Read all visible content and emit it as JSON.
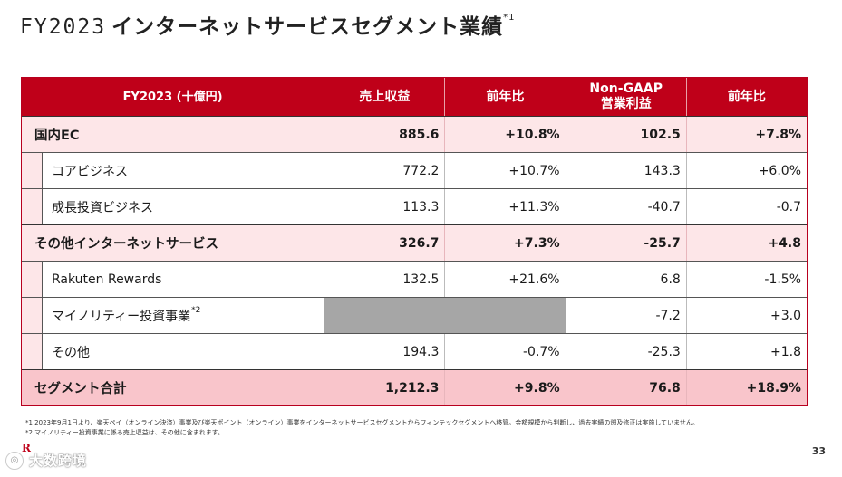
{
  "title": {
    "fy": "FY2023",
    "main": "インターネットサービスセグメント業績",
    "note_mark": "*1"
  },
  "table": {
    "headers": {
      "label": "FY2023 (十億円)",
      "revenue": "売上収益",
      "revenue_yoy": "前年比",
      "op_line1": "Non-GAAP",
      "op_line2": "営業利益",
      "op_yoy": "前年比"
    },
    "rows": [
      {
        "label": "国内EC",
        "revenue": "885.6",
        "revenue_yoy": "+10.8%",
        "op": "102.5",
        "op_yoy": "+7.8%"
      },
      {
        "label": "コアビジネス",
        "revenue": "772.2",
        "revenue_yoy": "+10.7%",
        "op": "143.3",
        "op_yoy": "+6.0%"
      },
      {
        "label": "成長投資ビジネス",
        "revenue": "113.3",
        "revenue_yoy": "+11.3%",
        "op": "-40.7",
        "op_yoy": "-0.7"
      },
      {
        "label": "その他インターネットサービス",
        "revenue": "326.7",
        "revenue_yoy": "+7.3%",
        "op": "-25.7",
        "op_yoy": "+4.8"
      },
      {
        "label": "Rakuten Rewards",
        "revenue": "132.5",
        "revenue_yoy": "+21.6%",
        "op": "6.8",
        "op_yoy": "-1.5%"
      },
      {
        "label": "マイノリティー投資事業",
        "note_mark": "*2",
        "op": "-7.2",
        "op_yoy": "+3.0"
      },
      {
        "label": "その他",
        "revenue": "194.3",
        "revenue_yoy": "-0.7%",
        "op": "-25.3",
        "op_yoy": "+1.8"
      },
      {
        "label": "セグメント合計",
        "revenue": "1,212.3",
        "revenue_yoy": "+9.8%",
        "op": "76.8",
        "op_yoy": "+18.9%"
      }
    ]
  },
  "notes": {
    "n1": "*1 2023年9月1日より、楽天ペイ（オンライン決済）事業及び楽天ポイント（オンライン）事業をインターネットサービスセグメントからフィンテックセグメントへ移管。金額規模から判断し、過去実績の遡及修正は実施していません。",
    "n2": "*2 マイノリティー投資事業に係る売上収益は、その他に含まれます。"
  },
  "page_number": "33",
  "watermark": "大数跨境"
}
